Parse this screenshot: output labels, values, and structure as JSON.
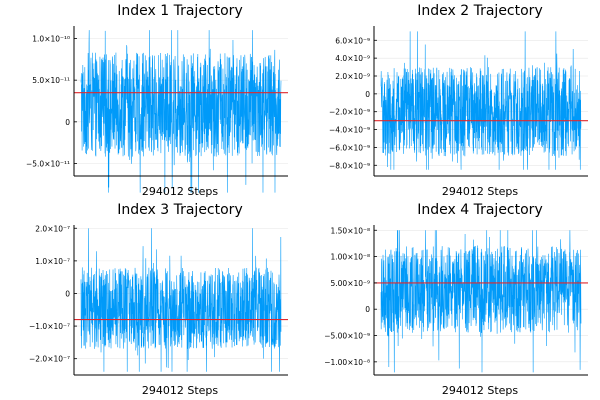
{
  "colors": {
    "trace": "#009af9",
    "mean_line": "#e0282d",
    "grid": "#e6e6e6"
  },
  "chart_data": [
    {
      "type": "line",
      "title": "Index 1 Trajectory",
      "xlabel": "294012 Steps",
      "ylabel": "",
      "x": [
        0,
        294012
      ],
      "ylim": [
        -6.5e-11,
        1.15e-10
      ],
      "yticks": [
        -5e-11,
        0,
        5e-11,
        1e-10
      ],
      "ytick_labels": [
        "−5.0×10⁻¹¹",
        "0",
        "5.0×10⁻¹¹",
        "1.0×10⁻¹⁰"
      ],
      "series": [
        {
          "kind": "trajectory",
          "center": 3.5e-11,
          "band_low": -4.2e-11,
          "band_high": 8.3e-11,
          "min": -8.5e-11,
          "max": 1.1e-10
        },
        {
          "kind": "mean",
          "value": 3.5e-11
        }
      ]
    },
    {
      "type": "line",
      "title": "Index 2 Trajectory",
      "xlabel": "294012 Steps",
      "ylabel": "",
      "x": [
        0,
        294012
      ],
      "ylim": [
        -9.2e-09,
        7.6e-09
      ],
      "yticks": [
        -8e-09,
        -6e-09,
        -4e-09,
        -2e-09,
        0,
        2e-09,
        4e-09,
        6e-09
      ],
      "ytick_labels": [
        "−8.0×10⁻⁹",
        "−6.0×10⁻⁹",
        "−4.0×10⁻⁹",
        "−2.0×10⁻⁹",
        "0",
        "2.0×10⁻⁹",
        "4.0×10⁻⁹",
        "6.0×10⁻⁹"
      ],
      "series": [
        {
          "kind": "trajectory",
          "center": -3e-09,
          "band_low": -7e-09,
          "band_high": 3e-09,
          "min": -8.5e-09,
          "max": 7e-09
        },
        {
          "kind": "mean",
          "value": -3e-09
        }
      ]
    },
    {
      "type": "line",
      "title": "Index 3 Trajectory",
      "xlabel": "294012 Steps",
      "ylabel": "",
      "x": [
        0,
        294012
      ],
      "ylim": [
        -2.5e-07,
        2.1e-07
      ],
      "yticks": [
        -2e-07,
        -1e-07,
        0,
        1e-07,
        2e-07
      ],
      "ytick_labels": [
        "−2.0×10⁻⁷",
        "−1.0×10⁻⁷",
        "0",
        "1.0×10⁻⁷",
        "2.0×10⁻⁷"
      ],
      "series": [
        {
          "kind": "trajectory",
          "center": -8e-08,
          "band_low": -1.7e-07,
          "band_high": 8e-08,
          "min": -2.4e-07,
          "max": 2e-07
        },
        {
          "kind": "mean",
          "value": -8e-08
        }
      ]
    },
    {
      "type": "line",
      "title": "Index 4 Trajectory",
      "xlabel": "294012 Steps",
      "ylabel": "",
      "x": [
        0,
        294012
      ],
      "ylim": [
        -1.25e-08,
        1.6e-08
      ],
      "yticks": [
        -1e-08,
        -5e-09,
        0,
        5e-09,
        1e-08,
        1.5e-08
      ],
      "ytick_labels": [
        "−1.00×10⁻⁸",
        "−5.00×10⁻⁹",
        "0",
        "5.00×10⁻⁹",
        "1.00×10⁻⁸",
        "1.50×10⁻⁸"
      ],
      "series": [
        {
          "kind": "trajectory",
          "center": 5e-09,
          "band_low": -4.5e-09,
          "band_high": 1.2e-08,
          "min": -1.2e-08,
          "max": 1.5e-08
        },
        {
          "kind": "mean",
          "value": 5e-09
        }
      ]
    }
  ]
}
